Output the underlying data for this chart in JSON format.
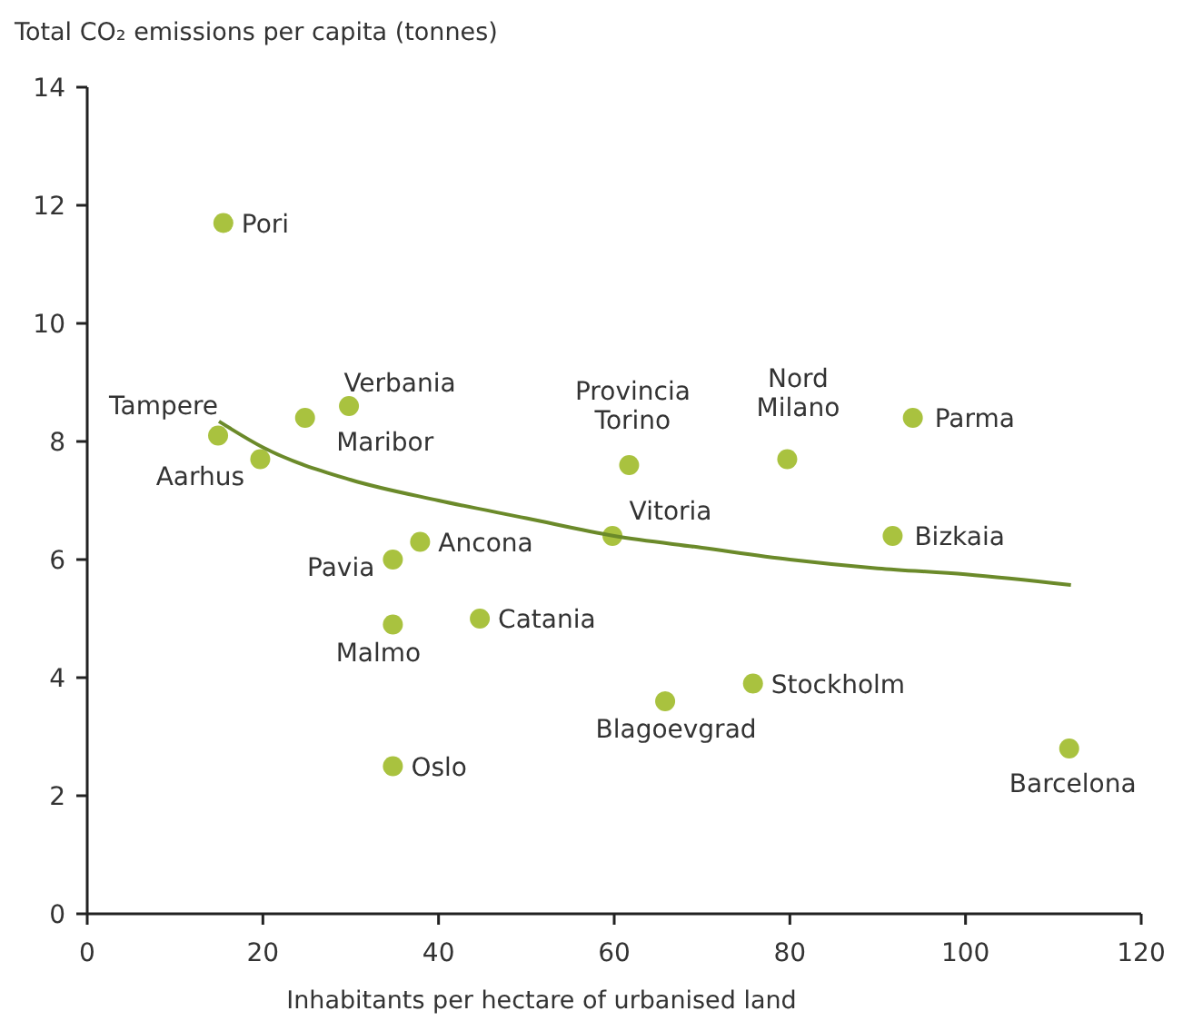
{
  "chart_data": {
    "type": "scatter",
    "title": "Total CO₂ emissions per capita (tonnes)",
    "xlabel": "Inhabitants per hectare of urbanised land",
    "xlim": [
      0,
      120
    ],
    "xticks": [
      0,
      20,
      40,
      60,
      80,
      100,
      120
    ],
    "ylim": [
      0,
      14
    ],
    "yticks": [
      0,
      2,
      4,
      6,
      8,
      10,
      12,
      14
    ],
    "grid": false,
    "marker": "circle",
    "series": [
      {
        "color": "#a9c23f",
        "x": [
          15.5,
          14.9,
          19.7,
          29.8,
          24.8,
          61.7,
          79.7,
          94,
          59.8,
          91.7,
          37.9,
          34.8,
          44.7,
          34.8,
          75.8,
          65.8,
          34.8,
          111.8
        ],
        "values": [
          11.7,
          8.1,
          7.7,
          8.6,
          8.4,
          7.6,
          7.7,
          8.4,
          6.4,
          6.4,
          6.3,
          6.0,
          5.0,
          4.9,
          3.9,
          3.6,
          2.5,
          2.8
        ]
      },
      {
        "type": "line",
        "color": "#6b8a2a",
        "marker": "none",
        "line_style": "solid",
        "x": [
          15,
          20,
          30,
          40,
          50,
          60,
          70,
          80,
          90,
          100,
          112
        ],
        "values": [
          8.34,
          7.9,
          7.35,
          7.0,
          6.7,
          6.4,
          6.2,
          6.0,
          5.85,
          5.75,
          5.57
        ]
      }
    ],
    "annotations": [
      {
        "text": "Pori",
        "x": 15.5,
        "y": 11.7
      },
      {
        "text": "Tampere",
        "x": 14.9,
        "y": 8.1
      },
      {
        "text": "Aarhus",
        "x": 19.7,
        "y": 7.7
      },
      {
        "text": "Verbania",
        "x": 29.8,
        "y": 8.6
      },
      {
        "text": "Maribor",
        "x": 24.8,
        "y": 8.4
      },
      {
        "text": "Provincia Torino",
        "x": 61.7,
        "y": 7.6
      },
      {
        "text": "Nord Milano",
        "x": 79.7,
        "y": 7.7
      },
      {
        "text": "Parma",
        "x": 94,
        "y": 8.4
      },
      {
        "text": "Vitoria",
        "x": 59.8,
        "y": 6.4
      },
      {
        "text": "Bizkaia",
        "x": 91.7,
        "y": 6.4
      },
      {
        "text": "Ancona",
        "x": 37.9,
        "y": 6.3
      },
      {
        "text": "Pavia",
        "x": 34.8,
        "y": 6.0
      },
      {
        "text": "Catania",
        "x": 44.7,
        "y": 5.0
      },
      {
        "text": "Malmo",
        "x": 34.8,
        "y": 4.9
      },
      {
        "text": "Stockholm",
        "x": 75.8,
        "y": 3.9
      },
      {
        "text": "Blagoevgrad",
        "x": 65.8,
        "y": 3.6
      },
      {
        "text": "Oslo",
        "x": 34.8,
        "y": 2.5
      },
      {
        "text": "Barcelona",
        "x": 111.8,
        "y": 2.8
      }
    ]
  }
}
